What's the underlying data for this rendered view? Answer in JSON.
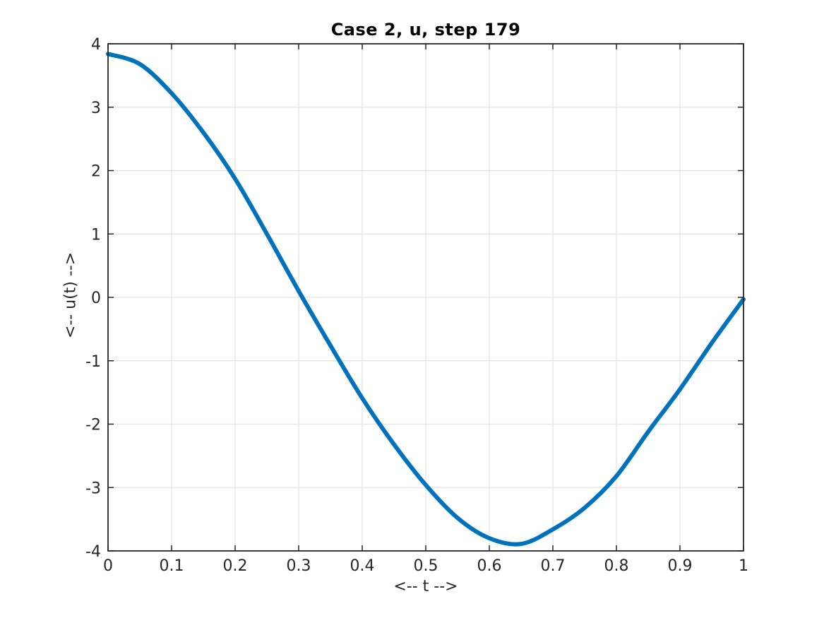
{
  "chart_data": {
    "type": "line",
    "title": "Case 2, u, step 179",
    "xlabel": "<-- t -->",
    "ylabel": "<-- u(t) -->",
    "xlim": [
      0,
      1
    ],
    "ylim": [
      -4,
      4
    ],
    "xticks": [
      0,
      0.1,
      0.2,
      0.3,
      0.4,
      0.5,
      0.6,
      0.7,
      0.8,
      0.9,
      1
    ],
    "xtick_labels": [
      "0",
      "0.1",
      "0.2",
      "0.3",
      "0.4",
      "0.5",
      "0.6",
      "0.7",
      "0.8",
      "0.9",
      "1"
    ],
    "yticks": [
      -4,
      -3,
      -2,
      -1,
      0,
      1,
      2,
      3,
      4
    ],
    "ytick_labels": [
      "-4",
      "-3",
      "-2",
      "-1",
      "0",
      "1",
      "2",
      "3",
      "4"
    ],
    "grid": true,
    "legend": "none",
    "series": [
      {
        "name": "u",
        "color": "#0072BD",
        "line_width": 6,
        "x": [
          0,
          0.05,
          0.1,
          0.15,
          0.2,
          0.25,
          0.3,
          0.35,
          0.4,
          0.45,
          0.5,
          0.55,
          0.6,
          0.65,
          0.7,
          0.75,
          0.8,
          0.85,
          0.9,
          0.95,
          1
        ],
        "y": [
          3.84,
          3.68,
          3.22,
          2.6,
          1.87,
          1.0,
          0.1,
          -0.76,
          -1.59,
          -2.32,
          -2.96,
          -3.48,
          -3.8,
          -3.89,
          -3.66,
          -3.32,
          -2.82,
          -2.12,
          -1.45,
          -0.72,
          -0.03
        ]
      }
    ],
    "colors": {
      "background": "#ffffff",
      "grid": "#e2e2e2",
      "axis": "#262626",
      "title": "#000000",
      "tick_label": "#262626"
    }
  }
}
